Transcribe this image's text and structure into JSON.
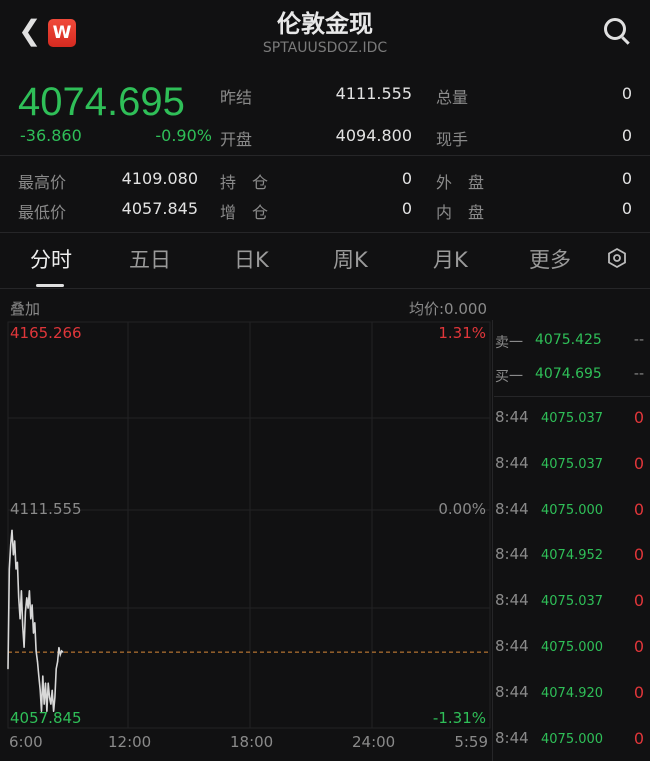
{
  "header": {
    "title": "伦敦金现",
    "code": "SPTAUUSDOZ.IDC",
    "back_icon": "chevron-left-icon",
    "logo_text": "W",
    "search_icon": "search-icon"
  },
  "quote": {
    "price": "4074.695",
    "change": "-36.860",
    "change_pct": "-0.90%",
    "stats": [
      {
        "label": "昨结",
        "value": "4111.555"
      },
      {
        "label": "总量",
        "value": "0"
      },
      {
        "label": "开盘",
        "value": "4094.800"
      },
      {
        "label": "现手",
        "value": "0"
      },
      {
        "label": "最高价",
        "value": "4109.080"
      },
      {
        "label": "持　仓",
        "value": "0"
      },
      {
        "label": "外　盘",
        "value": "0"
      },
      {
        "label": "最低价",
        "value": "4057.845"
      },
      {
        "label": "增　仓",
        "value": "0"
      },
      {
        "label": "内　盘",
        "value": "0"
      }
    ]
  },
  "tabs": [
    "分时",
    "五日",
    "日K",
    "周K",
    "月K",
    "更多"
  ],
  "settings_icon": "hexagon-settings-icon",
  "chart": {
    "overlay_label": "叠加",
    "avg_label": "均价:0.000",
    "y_top": "4165.266",
    "y_mid": "4111.555",
    "y_bottom": "4057.845",
    "pct_top": "1.31%",
    "pct_mid": "0.00%",
    "pct_bottom": "-1.31%",
    "x_ticks": [
      "6:00",
      "12:00",
      "18:00",
      "24:00",
      "5:59"
    ],
    "current_price": 4074.695,
    "colors": {
      "up": "#e0363a",
      "down": "#2fbf58",
      "line": "#d8d8d8",
      "current": "#d9893a"
    }
  },
  "chart_data": {
    "type": "line",
    "x": [
      "6:00",
      "6:04",
      "6:08",
      "6:12",
      "6:16",
      "6:20",
      "6:24",
      "6:28",
      "6:32",
      "6:36",
      "6:40",
      "6:44",
      "6:48",
      "6:52",
      "6:56",
      "7:00",
      "7:04",
      "7:08",
      "7:12",
      "7:16",
      "7:20",
      "7:24",
      "7:28",
      "7:32",
      "7:36",
      "7:40",
      "7:44",
      "7:48",
      "7:52",
      "7:56",
      "8:00",
      "8:04",
      "8:08",
      "8:12",
      "8:16",
      "8:20",
      "8:24",
      "8:28",
      "8:32",
      "8:36",
      "8:40",
      "8:44"
    ],
    "values": [
      4070,
      4098,
      4105,
      4109,
      4102,
      4106,
      4098,
      4100,
      4090,
      4084,
      4092,
      4082,
      4076,
      4086,
      4090,
      4087,
      4092,
      4084,
      4088,
      4080,
      4083,
      4075,
      4072,
      4068,
      4064,
      4058,
      4068,
      4060,
      4066,
      4058,
      4066,
      4062,
      4060,
      4064,
      4058,
      4062,
      4070,
      4072,
      4076,
      4074,
      4075,
      4074.695
    ],
    "ylim": [
      4057.845,
      4165.266
    ]
  },
  "order_book": {
    "ask": {
      "label": "卖一",
      "price": "4075.425",
      "vol": "--"
    },
    "bid": {
      "label": "买一",
      "price": "4074.695",
      "vol": "--"
    },
    "trades": [
      {
        "time": "8:44",
        "price": "4075.037",
        "vol": "0"
      },
      {
        "time": "8:44",
        "price": "4075.037",
        "vol": "0"
      },
      {
        "time": "8:44",
        "price": "4075.000",
        "vol": "0"
      },
      {
        "time": "8:44",
        "price": "4074.952",
        "vol": "0"
      },
      {
        "time": "8:44",
        "price": "4075.037",
        "vol": "0"
      },
      {
        "time": "8:44",
        "price": "4075.000",
        "vol": "0"
      },
      {
        "time": "8:44",
        "price": "4074.920",
        "vol": "0"
      },
      {
        "time": "8:44",
        "price": "4075.000",
        "vol": "0"
      }
    ]
  }
}
